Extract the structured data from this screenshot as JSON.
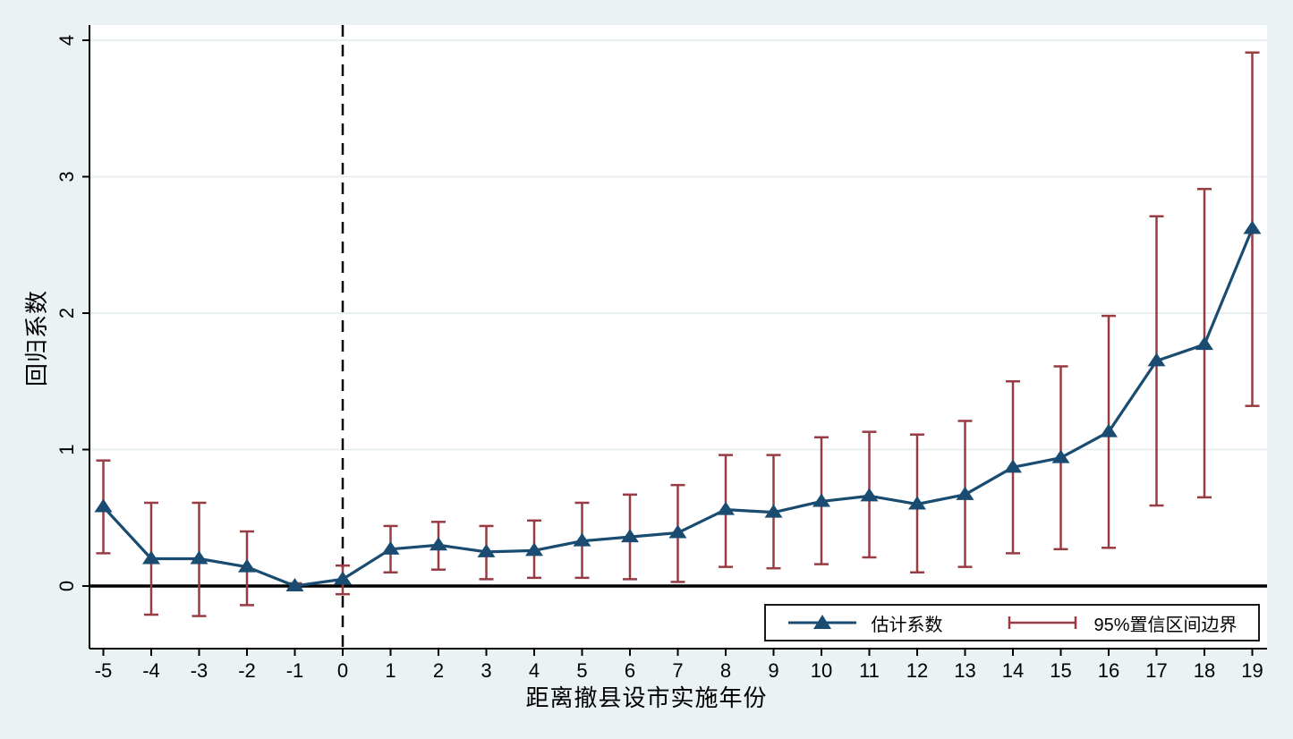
{
  "chart_data": {
    "type": "line",
    "subtype": "event-study coefficients with confidence intervals",
    "xlabel": "距离撤县设市实施年份",
    "ylabel": "回归系数",
    "x": [
      -5,
      -4,
      -3,
      -2,
      -1,
      0,
      1,
      2,
      3,
      4,
      5,
      6,
      7,
      8,
      9,
      10,
      11,
      12,
      13,
      14,
      15,
      16,
      17,
      18,
      19
    ],
    "series": [
      {
        "name": "估计系数",
        "type": "line+marker",
        "marker": "triangle",
        "color": "#1A4C71",
        "values": [
          0.58,
          0.2,
          0.2,
          0.14,
          0.0,
          0.05,
          0.27,
          0.3,
          0.25,
          0.26,
          0.33,
          0.36,
          0.39,
          0.56,
          0.54,
          0.62,
          0.66,
          0.6,
          0.67,
          0.87,
          0.94,
          1.13,
          1.65,
          1.77,
          2.62
        ]
      },
      {
        "name": "95%置信区间边界",
        "type": "errorbar",
        "color": "#993B43",
        "lower": [
          0.24,
          -0.21,
          -0.22,
          -0.14,
          -0.02,
          -0.06,
          0.1,
          0.12,
          0.05,
          0.06,
          0.06,
          0.05,
          0.03,
          0.14,
          0.13,
          0.16,
          0.21,
          0.1,
          0.14,
          0.24,
          0.27,
          0.28,
          0.59,
          0.65,
          1.32
        ],
        "upper": [
          0.92,
          0.61,
          0.61,
          0.4,
          0.02,
          0.15,
          0.44,
          0.47,
          0.44,
          0.48,
          0.61,
          0.67,
          0.74,
          0.96,
          0.96,
          1.09,
          1.13,
          1.11,
          1.21,
          1.5,
          1.61,
          1.98,
          2.71,
          2.91,
          3.91
        ]
      }
    ],
    "x_ticks": [
      -5,
      -4,
      -3,
      -2,
      -1,
      0,
      1,
      2,
      3,
      4,
      5,
      6,
      7,
      8,
      9,
      10,
      11,
      12,
      13,
      14,
      15,
      16,
      17,
      18,
      19
    ],
    "y_ticks": [
      0,
      1,
      2,
      3,
      4
    ],
    "xlim": [
      -5.29,
      19.31
    ],
    "ylim": [
      -0.46,
      4.11
    ],
    "grid": "horizontal-only",
    "reference_lines": {
      "vertical_dashed_x": 0,
      "horizontal_solid_y": 0
    },
    "legend_position": "inside-bottom-right",
    "colors": {
      "background": "#EAF2F3",
      "plot_background": "#FFFFFF",
      "gridline": "#E2ECEE",
      "axis": "#000000",
      "coefficient": "#1A4C71",
      "confidence_interval": "#993B43"
    }
  }
}
